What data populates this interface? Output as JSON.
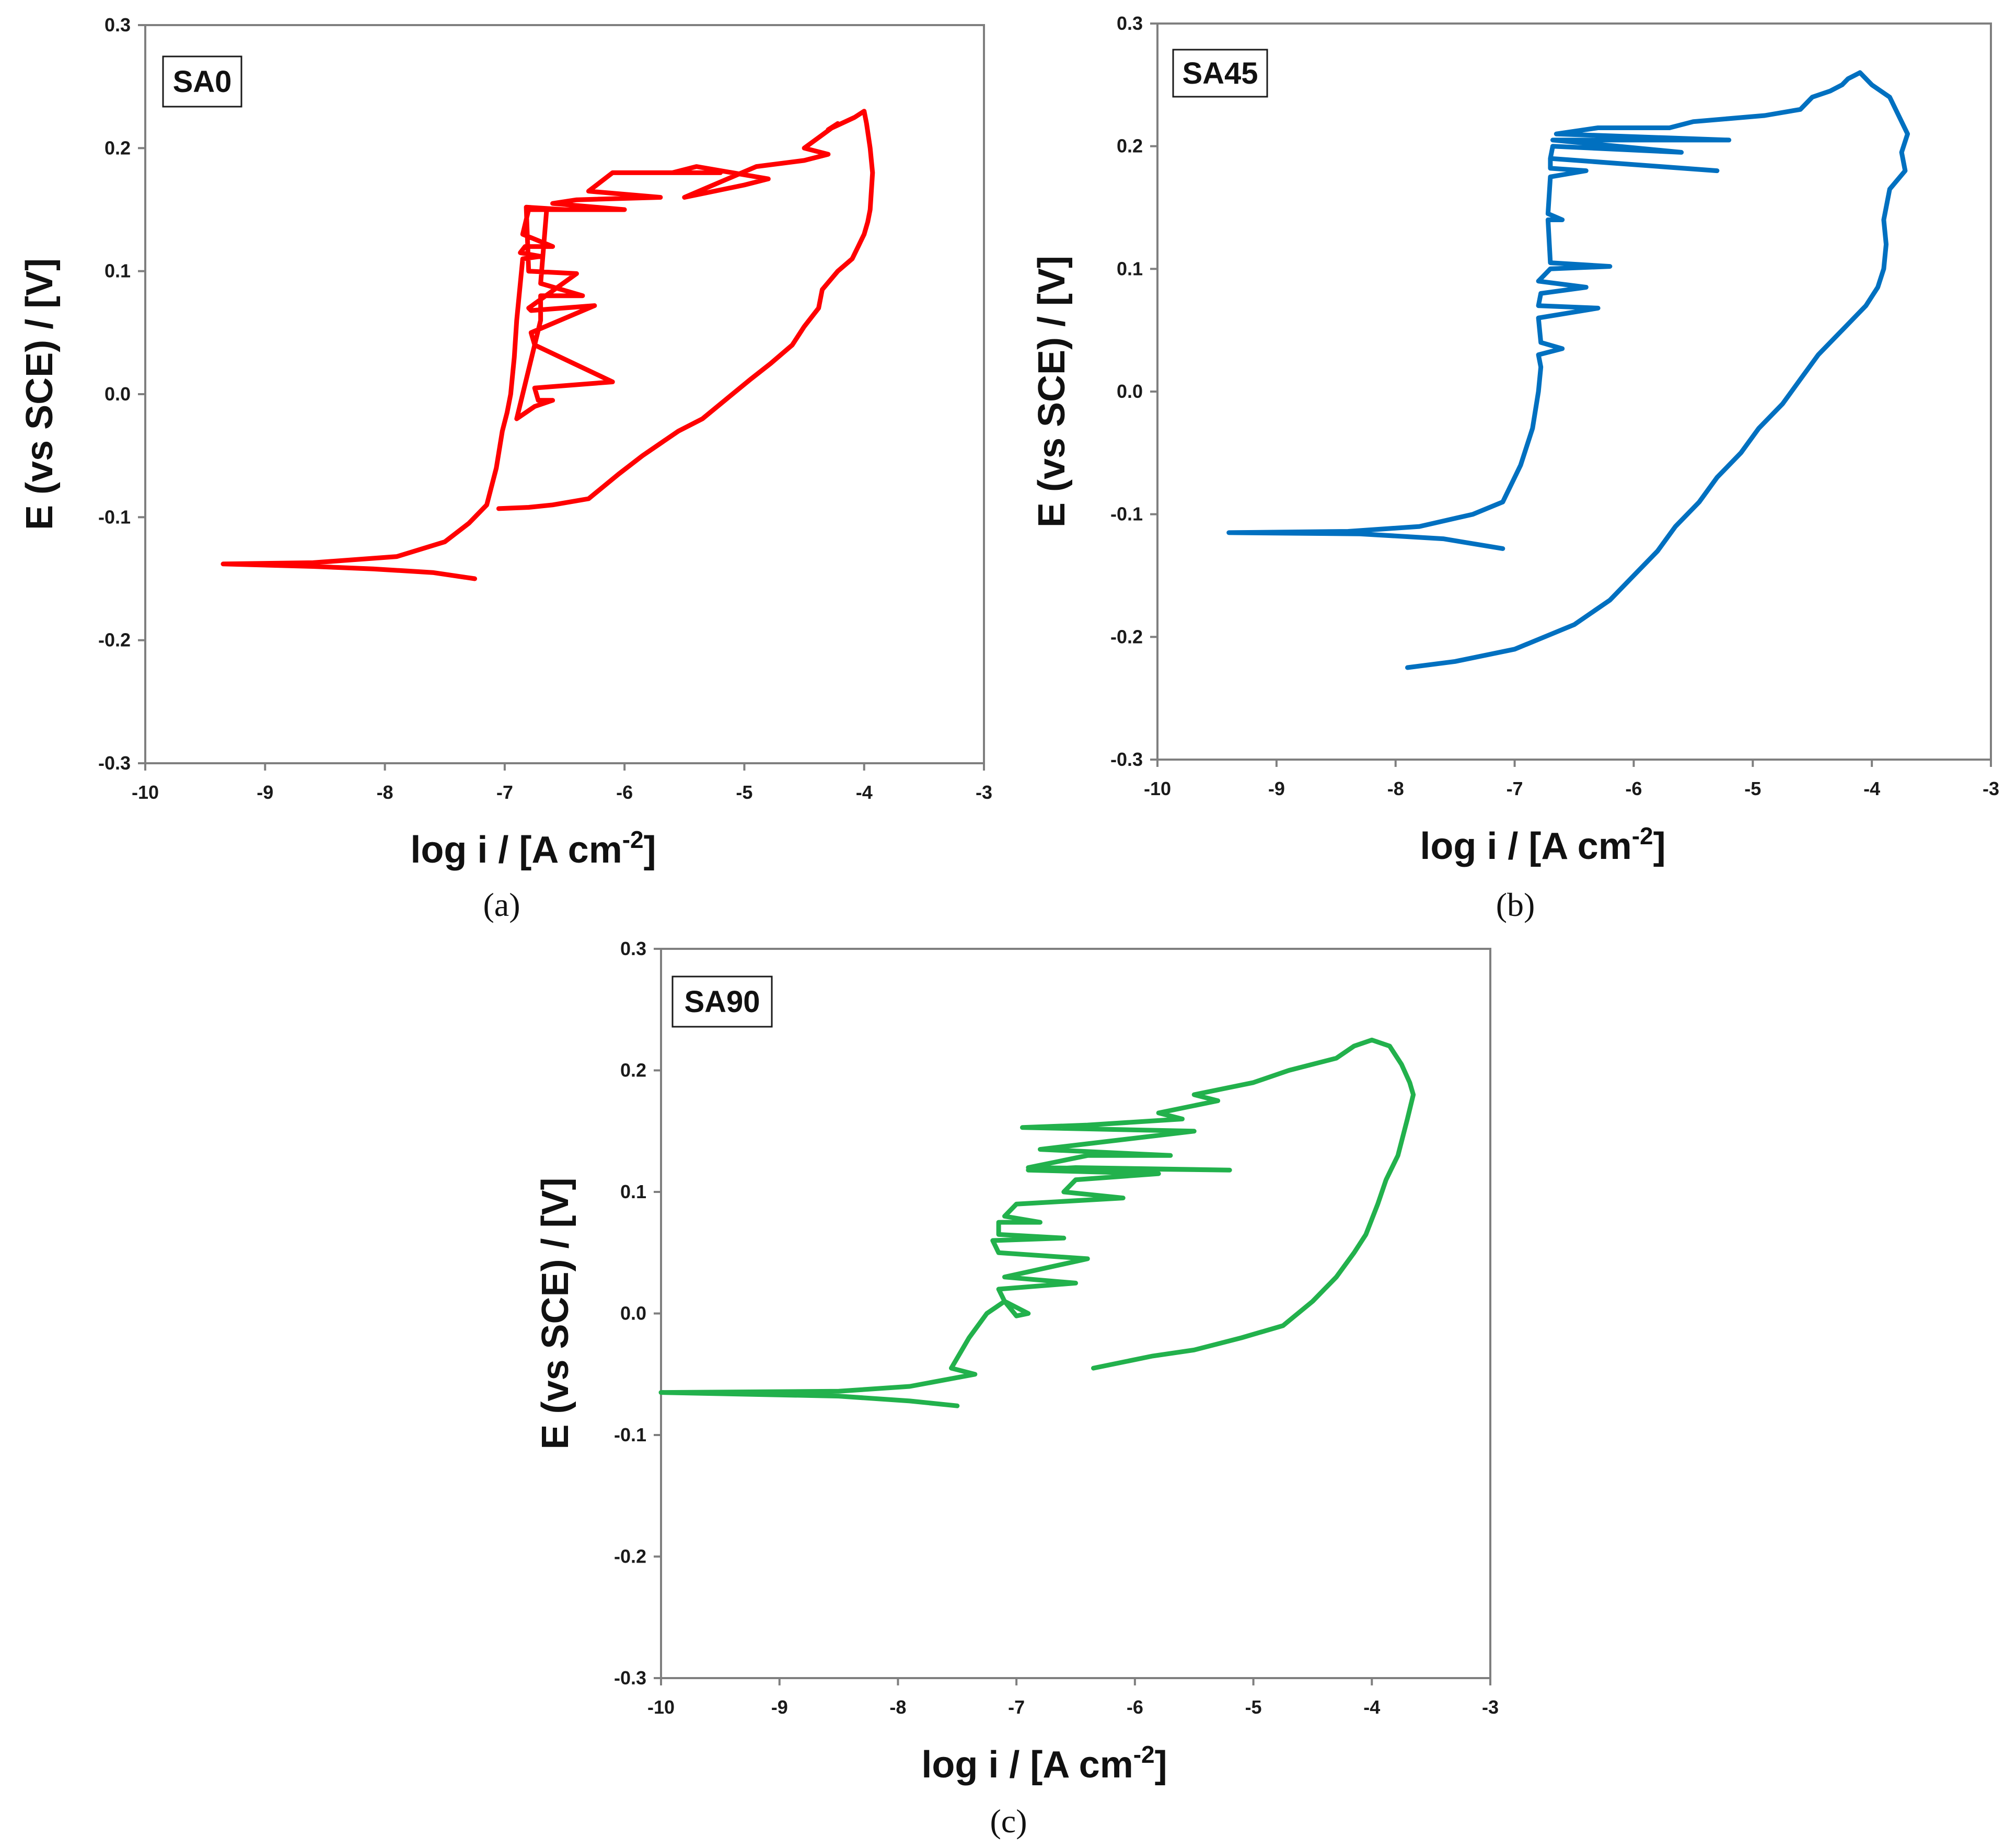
{
  "chart_data": [
    {
      "panel": "a",
      "caption": "(a)",
      "type": "line",
      "tag": "SA0",
      "color": "#ff0000",
      "xlabel": "log i / [A cm",
      "xlabel_sup": "-2",
      "xlabel_end": "]",
      "ylabel": "E (vs SCE) / [V]",
      "xlim": [
        -10,
        -3
      ],
      "ylim": [
        -0.3,
        0.3
      ],
      "xticks": [
        "-10",
        "-9",
        "-8",
        "-7",
        "-6",
        "-5",
        "-4",
        "-3"
      ],
      "yticks": [
        "-0.3",
        "-0.2",
        "-0.1",
        "0.0",
        "0.1",
        "0.2",
        "0.3"
      ],
      "series": [
        {
          "name": "SA0",
          "x": [
            -7.25,
            -7.6,
            -8.1,
            -8.6,
            -9.35,
            -8.6,
            -7.9,
            -7.5,
            -7.3,
            -7.15,
            -7.07,
            -7.02,
            -6.98,
            -6.95,
            -6.92,
            -6.9,
            -6.87,
            -6.85,
            -6.7,
            -6.87,
            -6.83,
            -6.6,
            -6.85,
            -6.8,
            -6.5,
            -6.82,
            -6.8,
            -6.4,
            -6.8,
            -6.78,
            -6.25,
            -6.78,
            -6.75,
            -6.1,
            -6.75,
            -6.72,
            -6.6,
            -6.75,
            -6.9,
            -6.7,
            -6.7,
            -6.35,
            -6.7,
            -6.65,
            -6.0,
            -6.6,
            -6.4,
            -5.7,
            -6.3,
            -6.1,
            -5.2,
            -5.6,
            -5.4,
            -4.8,
            -5.0,
            -5.5,
            -4.9,
            -4.5,
            -4.3,
            -4.5,
            -4.22,
            -4.3,
            -4.08,
            -4.0,
            -3.98,
            -3.95,
            -3.93,
            -3.95,
            -3.97,
            -4.0,
            -4.05,
            -4.1,
            -4.22,
            -4.35,
            -4.38,
            -4.5,
            -4.6,
            -4.78,
            -4.95,
            -5.1,
            -5.35,
            -5.55,
            -5.7,
            -5.85,
            -6.05,
            -6.3,
            -6.6,
            -6.8,
            -7.05
          ],
          "y": [
            -0.15,
            -0.145,
            -0.142,
            -0.14,
            -0.138,
            -0.137,
            -0.132,
            -0.12,
            -0.105,
            -0.09,
            -0.06,
            -0.03,
            -0.015,
            0.0,
            0.03,
            0.06,
            0.09,
            0.11,
            0.112,
            0.115,
            0.12,
            0.12,
            0.13,
            0.15,
            0.15,
            0.152,
            0.1,
            0.098,
            0.07,
            0.068,
            0.072,
            0.05,
            0.04,
            0.01,
            0.005,
            -0.005,
            -0.005,
            -0.01,
            -0.02,
            0.06,
            0.08,
            0.08,
            0.09,
            0.15,
            0.15,
            0.155,
            0.158,
            0.16,
            0.165,
            0.18,
            0.18,
            0.18,
            0.185,
            0.175,
            0.17,
            0.16,
            0.185,
            0.19,
            0.195,
            0.2,
            0.22,
            0.215,
            0.225,
            0.23,
            0.22,
            0.2,
            0.18,
            0.15,
            0.14,
            0.13,
            0.12,
            0.11,
            0.1,
            0.085,
            0.07,
            0.055,
            0.04,
            0.025,
            0.012,
            0.0,
            -0.02,
            -0.03,
            -0.04,
            -0.05,
            -0.065,
            -0.085,
            -0.09,
            -0.092,
            -0.093
          ]
        }
      ]
    },
    {
      "panel": "b",
      "caption": "(b)",
      "type": "line",
      "tag": "SA45",
      "color": "#0070c0",
      "xlabel": "log i / [A cm",
      "xlabel_sup": "-2",
      "xlabel_end": "]",
      "ylabel": "E (vs SCE) / [V]",
      "xlim": [
        -10,
        -3
      ],
      "ylim": [
        -0.3,
        0.3
      ],
      "xticks": [
        "-10",
        "-9",
        "-8",
        "-7",
        "-6",
        "-5",
        "-4",
        "-3"
      ],
      "yticks": [
        "-0.3",
        "-0.2",
        "-0.1",
        "0.0",
        "0.1",
        "0.2",
        "0.3"
      ],
      "series": [
        {
          "name": "SA45",
          "x": [
            -7.1,
            -7.6,
            -8.3,
            -9.4,
            -8.4,
            -7.8,
            -7.35,
            -7.1,
            -6.95,
            -6.85,
            -6.8,
            -6.78,
            -6.8,
            -6.6,
            -6.78,
            -6.8,
            -6.3,
            -6.8,
            -6.78,
            -6.4,
            -6.8,
            -6.7,
            -6.2,
            -6.7,
            -6.72,
            -6.6,
            -6.72,
            -6.7,
            -6.4,
            -6.7,
            -6.7,
            -5.3,
            -6.7,
            -6.68,
            -5.6,
            -6.68,
            -5.2,
            -6.65,
            -6.3,
            -5.7,
            -5.5,
            -4.9,
            -4.6,
            -4.5,
            -4.35,
            -4.25,
            -4.2,
            -4.1,
            -4.0,
            -3.85,
            -3.75,
            -3.7,
            -3.75,
            -3.72,
            -3.85,
            -3.9,
            -3.88,
            -3.9,
            -3.95,
            -4.05,
            -4.25,
            -4.45,
            -4.6,
            -4.75,
            -4.95,
            -5.1,
            -5.3,
            -5.45,
            -5.65,
            -5.8,
            -6.0,
            -6.2,
            -6.5,
            -7.0,
            -7.5,
            -7.9
          ],
          "y": [
            -0.128,
            -0.12,
            -0.116,
            -0.115,
            -0.114,
            -0.11,
            -0.1,
            -0.09,
            -0.06,
            -0.03,
            0.0,
            0.02,
            0.03,
            0.035,
            0.04,
            0.06,
            0.068,
            0.07,
            0.08,
            0.085,
            0.09,
            0.1,
            0.102,
            0.105,
            0.14,
            0.14,
            0.145,
            0.175,
            0.18,
            0.182,
            0.19,
            0.18,
            0.19,
            0.2,
            0.195,
            0.205,
            0.205,
            0.21,
            0.215,
            0.215,
            0.22,
            0.225,
            0.23,
            0.24,
            0.245,
            0.25,
            0.255,
            0.26,
            0.25,
            0.24,
            0.22,
            0.21,
            0.195,
            0.18,
            0.165,
            0.14,
            0.12,
            0.1,
            0.085,
            0.07,
            0.05,
            0.03,
            0.01,
            -0.01,
            -0.03,
            -0.05,
            -0.07,
            -0.09,
            -0.11,
            -0.13,
            -0.15,
            -0.17,
            -0.19,
            -0.21,
            -0.22,
            -0.225
          ]
        }
      ]
    },
    {
      "panel": "c",
      "caption": "(c)",
      "type": "line",
      "tag": "SA90",
      "color": "#22b14c",
      "xlabel": "log i / [A cm",
      "xlabel_sup": "-2",
      "xlabel_end": "]",
      "ylabel": "E (vs SCE) / [V]",
      "xlim": [
        -10,
        -3
      ],
      "ylim": [
        -0.3,
        0.3
      ],
      "xticks": [
        "-10",
        "-9",
        "-8",
        "-7",
        "-6",
        "-5",
        "-4",
        "-3"
      ],
      "yticks": [
        "-0.3",
        "-0.2",
        "-0.1",
        "0.0",
        "0.1",
        "0.2",
        "0.3"
      ],
      "series": [
        {
          "name": "SA90",
          "x": [
            -7.5,
            -7.9,
            -8.5,
            -10.0,
            -8.5,
            -7.9,
            -7.35,
            -7.55,
            -7.4,
            -7.25,
            -7.1,
            -7.0,
            -6.9,
            -7.0,
            -7.1,
            -7.15,
            -6.5,
            -7.1,
            -6.4,
            -7.15,
            -7.2,
            -6.6,
            -7.15,
            -7.15,
            -6.8,
            -7.1,
            -7.0,
            -6.1,
            -6.6,
            -6.5,
            -5.8,
            -6.9,
            -6.5,
            -5.2,
            -6.9,
            -6.4,
            -5.7,
            -6.8,
            -5.5,
            -6.95,
            -6.4,
            -5.6,
            -5.8,
            -5.3,
            -5.5,
            -5.0,
            -4.7,
            -4.3,
            -4.15,
            -4.0,
            -3.85,
            -3.75,
            -3.68,
            -3.65,
            -3.7,
            -3.78,
            -3.88,
            -3.95,
            -4.05,
            -4.15,
            -4.3,
            -4.5,
            -4.75,
            -5.1,
            -5.5,
            -5.85,
            -6.1,
            -6.35
          ],
          "y": [
            -0.076,
            -0.072,
            -0.068,
            -0.065,
            -0.064,
            -0.06,
            -0.05,
            -0.045,
            -0.02,
            0.0,
            0.01,
            0.005,
            0.0,
            -0.002,
            0.01,
            0.02,
            0.025,
            0.03,
            0.045,
            0.05,
            0.06,
            0.062,
            0.065,
            0.075,
            0.075,
            0.08,
            0.09,
            0.095,
            0.1,
            0.11,
            0.115,
            0.118,
            0.12,
            0.118,
            0.12,
            0.13,
            0.13,
            0.135,
            0.15,
            0.153,
            0.155,
            0.16,
            0.165,
            0.175,
            0.18,
            0.19,
            0.2,
            0.21,
            0.22,
            0.225,
            0.22,
            0.205,
            0.19,
            0.18,
            0.16,
            0.13,
            0.11,
            0.09,
            0.065,
            0.05,
            0.03,
            0.01,
            -0.01,
            -0.02,
            -0.03,
            -0.035,
            -0.04,
            -0.045
          ]
        }
      ]
    }
  ]
}
